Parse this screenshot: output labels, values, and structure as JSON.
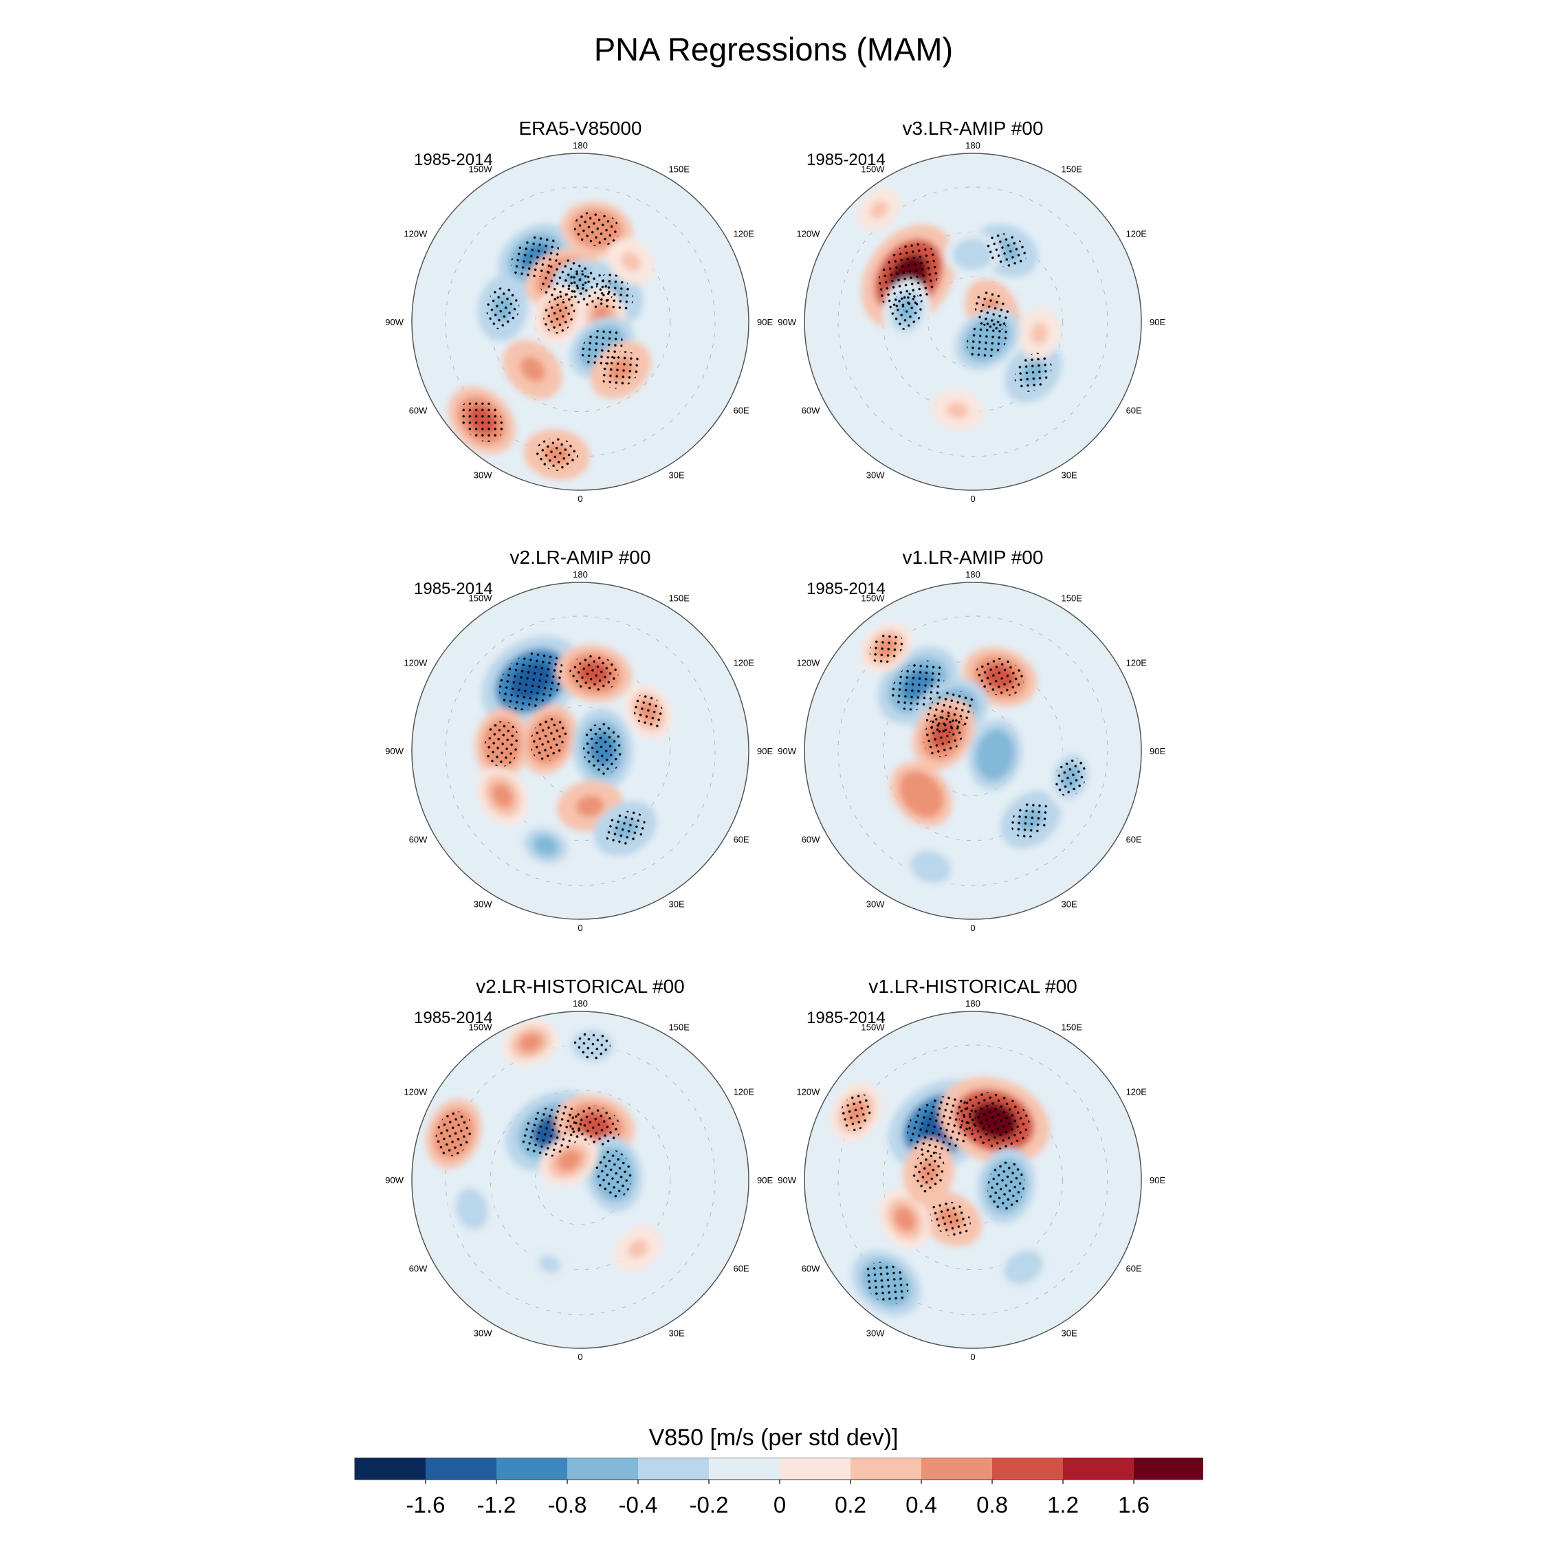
{
  "figure": {
    "title": "PNA Regressions (MAM)"
  },
  "chart_data": [
    {
      "type": "heatmap",
      "projection": "north polar stereographic",
      "title": "ERA5-V85000",
      "period": "1985-2014",
      "lon_labels": [
        "180",
        "150E",
        "120E",
        "90E",
        "60E",
        "30E",
        "0",
        "30W",
        "60W",
        "90W",
        "120W",
        "150W"
      ],
      "features": [
        {
          "lat": 55,
          "lon": -145,
          "value": -0.9,
          "stipple": true
        },
        {
          "lat": 48,
          "lon": 170,
          "value": 0.7,
          "stipple": true
        },
        {
          "lat": 70,
          "lon": -160,
          "value": 0.9,
          "stipple": true
        },
        {
          "lat": 75,
          "lon": 165,
          "value": -0.8,
          "stipple": true
        },
        {
          "lat": 70,
          "lon": 130,
          "value": -0.6,
          "stipple": true
        },
        {
          "lat": 80,
          "lon": 100,
          "value": 0.5,
          "stipple": false
        },
        {
          "lat": 55,
          "lon": -100,
          "value": -0.6,
          "stipple": true
        },
        {
          "lat": 75,
          "lon": 40,
          "value": -0.7,
          "stipple": true
        },
        {
          "lat": 62,
          "lon": 40,
          "value": 0.6,
          "stipple": true
        },
        {
          "lat": 60,
          "lon": -45,
          "value": 0.6,
          "stipple": false
        },
        {
          "lat": 28,
          "lon": -45,
          "value": 0.8,
          "stipple": true
        },
        {
          "lat": 30,
          "lon": -10,
          "value": 0.6,
          "stipple": true
        },
        {
          "lat": 80,
          "lon": -110,
          "value": 0.5,
          "stipple": true
        },
        {
          "lat": 55,
          "lon": 140,
          "value": 0.3,
          "stipple": false
        }
      ]
    },
    {
      "type": "heatmap",
      "projection": "north polar stereographic",
      "title": "v3.LR-AMIP  #00",
      "period": "1985-2014",
      "lon_labels": [
        "180",
        "150E",
        "120E",
        "90E",
        "60E",
        "30E",
        "0",
        "30W",
        "60W",
        "90W",
        "120W",
        "150W"
      ],
      "features": [
        {
          "lat": 55,
          "lon": -125,
          "value": 1.6,
          "stipple": true
        },
        {
          "lat": 55,
          "lon": 155,
          "value": -0.6,
          "stipple": true
        },
        {
          "lat": 60,
          "lon": 180,
          "value": -0.4,
          "stipple": false
        },
        {
          "lat": 60,
          "lon": -100,
          "value": -0.5,
          "stipple": true
        },
        {
          "lat": 80,
          "lon": 120,
          "value": 0.6,
          "stipple": true
        },
        {
          "lat": 80,
          "lon": 40,
          "value": -0.7,
          "stipple": true
        },
        {
          "lat": 55,
          "lon": 50,
          "value": -0.6,
          "stipple": true
        },
        {
          "lat": 50,
          "lon": -10,
          "value": 0.3,
          "stipple": false
        },
        {
          "lat": 60,
          "lon": 80,
          "value": 0.3,
          "stipple": false
        },
        {
          "lat": 25,
          "lon": -140,
          "value": 0.2,
          "stipple": false
        }
      ]
    },
    {
      "type": "heatmap",
      "projection": "north polar stereographic",
      "title": "v2.LR-AMIP  #00",
      "period": "1985-2014",
      "lon_labels": [
        "180",
        "150E",
        "120E",
        "90E",
        "60E",
        "30E",
        "0",
        "30W",
        "60W",
        "90W",
        "120W",
        "150W"
      ],
      "features": [
        {
          "lat": 52,
          "lon": -145,
          "value": -1.5,
          "stipple": true
        },
        {
          "lat": 55,
          "lon": 170,
          "value": 0.8,
          "stipple": true
        },
        {
          "lat": 75,
          "lon": -110,
          "value": 0.7,
          "stipple": true
        },
        {
          "lat": 80,
          "lon": 95,
          "value": -0.9,
          "stipple": true
        },
        {
          "lat": 55,
          "lon": -95,
          "value": 0.7,
          "stipple": true
        },
        {
          "lat": 65,
          "lon": 10,
          "value": 0.6,
          "stipple": false
        },
        {
          "lat": 50,
          "lon": 30,
          "value": -0.6,
          "stipple": true
        },
        {
          "lat": 45,
          "lon": -20,
          "value": -0.5,
          "stipple": false
        },
        {
          "lat": 50,
          "lon": -60,
          "value": 0.5,
          "stipple": false
        },
        {
          "lat": 55,
          "lon": 120,
          "value": 0.4,
          "stipple": true
        }
      ]
    },
    {
      "type": "heatmap",
      "projection": "north polar stereographic",
      "title": "v1.LR-AMIP  #00",
      "period": "1985-2014",
      "lon_labels": [
        "180",
        "150E",
        "120E",
        "90E",
        "60E",
        "30E",
        "0",
        "30W",
        "60W",
        "90W",
        "120W",
        "150W"
      ],
      "features": [
        {
          "lat": 52,
          "lon": -140,
          "value": -1.1,
          "stipple": true
        },
        {
          "lat": 55,
          "lon": 160,
          "value": 0.8,
          "stipple": true
        },
        {
          "lat": 70,
          "lon": -150,
          "value": -0.9,
          "stipple": true
        },
        {
          "lat": 75,
          "lon": -120,
          "value": 0.8,
          "stipple": true
        },
        {
          "lat": 80,
          "lon": 80,
          "value": -0.7,
          "stipple": false
        },
        {
          "lat": 60,
          "lon": -50,
          "value": 0.7,
          "stipple": false
        },
        {
          "lat": 50,
          "lon": 40,
          "value": -0.6,
          "stipple": true
        },
        {
          "lat": 45,
          "lon": 75,
          "value": -0.5,
          "stipple": true
        },
        {
          "lat": 35,
          "lon": -20,
          "value": -0.4,
          "stipple": false
        },
        {
          "lat": 30,
          "lon": -140,
          "value": 0.4,
          "stipple": true
        }
      ]
    },
    {
      "type": "heatmap",
      "projection": "north polar stereographic",
      "title": "v2.LR-HISTORICAL  #00",
      "period": "1985-2014",
      "lon_labels": [
        "180",
        "150E",
        "120E",
        "90E",
        "60E",
        "30E",
        "0",
        "30W",
        "60W",
        "90W",
        "120W",
        "150W"
      ],
      "features": [
        {
          "lat": 65,
          "lon": -150,
          "value": -1.3,
          "stipple": true
        },
        {
          "lat": 65,
          "lon": 165,
          "value": 0.9,
          "stipple": true
        },
        {
          "lat": 75,
          "lon": 100,
          "value": -0.8,
          "stipple": true
        },
        {
          "lat": 30,
          "lon": -110,
          "value": 0.7,
          "stipple": true
        },
        {
          "lat": 80,
          "lon": -150,
          "value": 0.5,
          "stipple": false
        },
        {
          "lat": 30,
          "lon": 175,
          "value": -0.4,
          "stipple": true
        },
        {
          "lat": 40,
          "lon": -75,
          "value": -0.4,
          "stipple": false
        },
        {
          "lat": 50,
          "lon": -20,
          "value": -0.3,
          "stipple": false
        },
        {
          "lat": 50,
          "lon": 40,
          "value": 0.3,
          "stipple": false
        },
        {
          "lat": 25,
          "lon": -160,
          "value": 0.4,
          "stipple": false
        }
      ]
    },
    {
      "type": "heatmap",
      "projection": "north polar stereographic",
      "title": "v1.LR-HISTORICAL  #00",
      "period": "1985-2014",
      "lon_labels": [
        "180",
        "150E",
        "120E",
        "90E",
        "60E",
        "30E",
        "0",
        "30W",
        "60W",
        "90W",
        "120W",
        "150W"
      ],
      "features": [
        {
          "lat": 62,
          "lon": -150,
          "value": -1.6,
          "stipple": true
        },
        {
          "lat": 62,
          "lon": 160,
          "value": 1.6,
          "stipple": true
        },
        {
          "lat": 75,
          "lon": 80,
          "value": -0.8,
          "stipple": true
        },
        {
          "lat": 30,
          "lon": -40,
          "value": -0.8,
          "stipple": true
        },
        {
          "lat": 70,
          "lon": -30,
          "value": 0.6,
          "stipple": true
        },
        {
          "lat": 30,
          "lon": -120,
          "value": 0.5,
          "stipple": true
        },
        {
          "lat": 55,
          "lon": -60,
          "value": 0.5,
          "stipple": false
        },
        {
          "lat": 45,
          "lon": 30,
          "value": -0.4,
          "stipple": false
        },
        {
          "lat": 70,
          "lon": -100,
          "value": 0.6,
          "stipple": true
        }
      ]
    }
  ],
  "colorbar": {
    "title": "V850 [m/s (per std dev)]",
    "tick_labels": [
      "-1.6",
      "-1.2",
      "-0.8",
      "-0.4",
      "-0.2",
      "0",
      "0.2",
      "0.4",
      "0.8",
      "1.2",
      "1.6"
    ],
    "bounds": [
      -1.6,
      -1.2,
      -0.8,
      -0.4,
      -0.2,
      0,
      0.2,
      0.4,
      0.8,
      1.2,
      1.6
    ],
    "colors": [
      "#08295a",
      "#1f5d9f",
      "#3c88bf",
      "#82b8d8",
      "#bad6ea",
      "#e3edf4",
      "#fae6de",
      "#f7c3ad",
      "#ec9274",
      "#d25343",
      "#ae1b2a",
      "#6b0019"
    ]
  }
}
